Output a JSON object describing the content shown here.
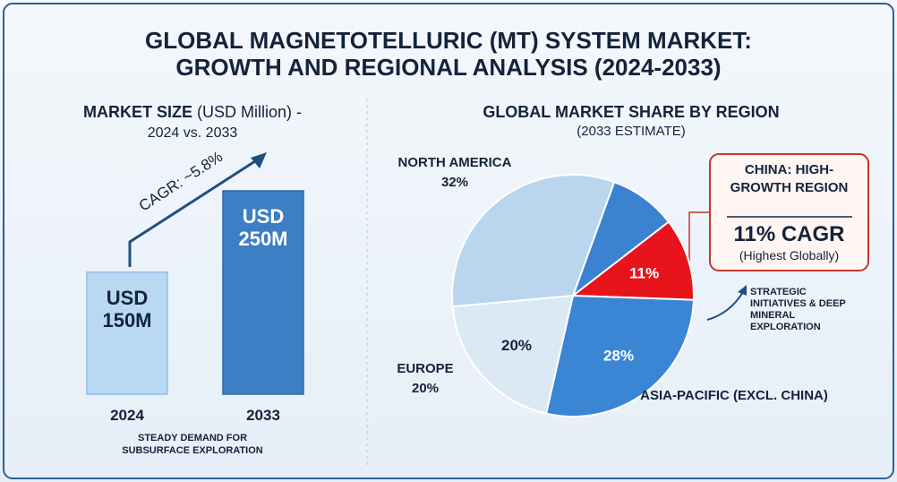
{
  "header": {
    "title_lines": [
      "GLOBAL MAGNETOTELLURIC (MT) SYSTEM MARKET:",
      "GROWTH AND REGIONAL ANALYSIS (2024-2033)"
    ]
  },
  "chart_data": [
    {
      "type": "bar",
      "title": "MARKET SIZE",
      "subtitle": "(USD Million) -",
      "period": "2024 vs. 2033",
      "categories": [
        "2024",
        "2033"
      ],
      "values": [
        150,
        250
      ],
      "value_labels": [
        "USD 150M",
        "USD 250M"
      ],
      "colors": [
        "#b9d8f2",
        "#3d7fc4"
      ],
      "annotation": "CAGR: ~5.8%",
      "note": "STEADY DEMAND FOR SUBSURFACE EXPLORATION"
    },
    {
      "type": "pie",
      "title": "GLOBAL MARKET SHARE BY REGION",
      "subtitle": "(2033 ESTIMATE)",
      "categories": [
        null,
        "CHINA",
        "ASIA-PACIFIC (EXCL. CHINA)",
        "EUROPE",
        "NORTH AMERICA"
      ],
      "values": [
        9,
        11,
        28,
        20,
        32
      ],
      "value_labels": [
        null,
        "11%",
        "28%",
        "20%",
        "32%"
      ],
      "colors": [
        "#3b82d0",
        "#e8141c",
        "#3a86d4",
        "#dbe9f5",
        "#b9d6ee"
      ],
      "callout": {
        "heading": "CHINA: HIGH-GROWTH REGION",
        "metric": "11% CAGR",
        "detail": "(Highest Globally)"
      },
      "annotation": "STRATEGIC INITIATIVES & DEEP MINERAL EXPLORATION"
    }
  ]
}
